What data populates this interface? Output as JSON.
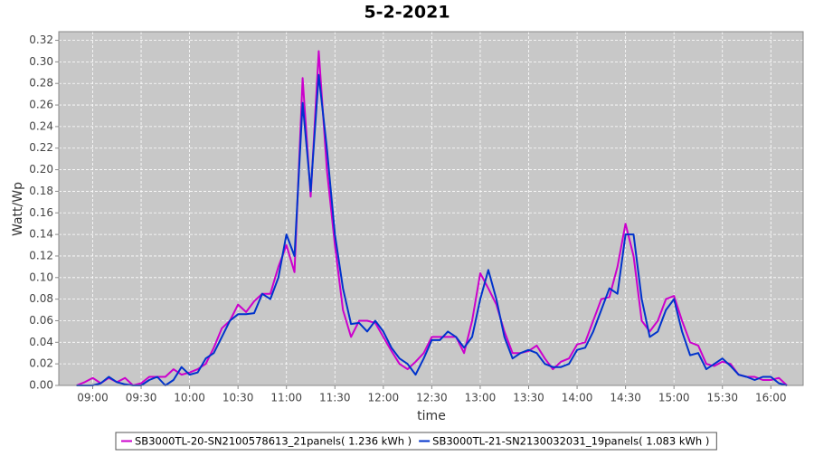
{
  "chart_data": {
    "type": "line",
    "title": "5-2-2021",
    "x_label": "time",
    "y_label": "Watt/Wp",
    "x": [
      "08:50",
      "08:55",
      "09:00",
      "09:05",
      "09:10",
      "09:15",
      "09:20",
      "09:25",
      "09:30",
      "09:35",
      "09:40",
      "09:45",
      "09:50",
      "09:55",
      "10:00",
      "10:05",
      "10:10",
      "10:15",
      "10:20",
      "10:25",
      "10:30",
      "10:35",
      "10:40",
      "10:45",
      "10:50",
      "10:55",
      "11:00",
      "11:05",
      "11:10",
      "11:15",
      "11:20",
      "11:25",
      "11:30",
      "11:35",
      "11:40",
      "11:45",
      "11:50",
      "11:55",
      "12:00",
      "12:05",
      "12:10",
      "12:15",
      "12:20",
      "12:25",
      "12:30",
      "12:35",
      "12:40",
      "12:45",
      "12:50",
      "12:55",
      "13:00",
      "13:05",
      "13:10",
      "13:15",
      "13:20",
      "13:25",
      "13:30",
      "13:35",
      "13:40",
      "13:45",
      "13:50",
      "13:55",
      "14:00",
      "14:05",
      "14:10",
      "14:15",
      "14:20",
      "14:25",
      "14:30",
      "14:35",
      "14:40",
      "14:45",
      "14:50",
      "14:55",
      "15:00",
      "15:05",
      "15:10",
      "15:15",
      "15:20",
      "15:25",
      "15:30",
      "15:35",
      "15:40",
      "15:45",
      "15:50",
      "15:55",
      "16:00",
      "16:05",
      "16:10"
    ],
    "series": [
      {
        "name": "SB3000TL-20-SN2100578613_21panels( 1.236 kWh )",
        "color": "#cc00cc",
        "values": [
          0.0,
          0.003,
          0.007,
          0.002,
          0.007,
          0.003,
          0.007,
          0.0,
          0.002,
          0.008,
          0.008,
          0.008,
          0.015,
          0.01,
          0.012,
          0.015,
          0.02,
          0.035,
          0.053,
          0.06,
          0.075,
          0.068,
          0.078,
          0.085,
          0.085,
          0.11,
          0.13,
          0.105,
          0.285,
          0.175,
          0.31,
          0.2,
          0.13,
          0.07,
          0.045,
          0.06,
          0.06,
          0.058,
          0.045,
          0.032,
          0.02,
          0.015,
          0.022,
          0.03,
          0.045,
          0.045,
          0.045,
          0.045,
          0.03,
          0.06,
          0.104,
          0.09,
          0.075,
          0.05,
          0.03,
          0.03,
          0.032,
          0.037,
          0.025,
          0.015,
          0.022,
          0.025,
          0.038,
          0.04,
          0.06,
          0.08,
          0.082,
          0.11,
          0.15,
          0.12,
          0.06,
          0.05,
          0.06,
          0.08,
          0.083,
          0.06,
          0.04,
          0.037,
          0.02,
          0.018,
          0.022,
          0.02,
          0.01,
          0.008,
          0.008,
          0.005,
          0.005,
          0.007,
          0.0
        ]
      },
      {
        "name": "SB3000TL-21-SN2130032031_19panels( 1.083 kWh )",
        "color": "#0033cc",
        "values": [
          0.0,
          0.0,
          0.0,
          0.002,
          0.008,
          0.003,
          0.001,
          0.0,
          0.0,
          0.005,
          0.008,
          0.0,
          0.005,
          0.017,
          0.01,
          0.012,
          0.025,
          0.03,
          0.045,
          0.06,
          0.066,
          0.066,
          0.067,
          0.085,
          0.08,
          0.1,
          0.14,
          0.12,
          0.262,
          0.18,
          0.288,
          0.22,
          0.14,
          0.09,
          0.057,
          0.058,
          0.05,
          0.06,
          0.05,
          0.035,
          0.025,
          0.02,
          0.01,
          0.025,
          0.042,
          0.042,
          0.05,
          0.045,
          0.035,
          0.045,
          0.08,
          0.107,
          0.08,
          0.045,
          0.025,
          0.03,
          0.033,
          0.03,
          0.02,
          0.017,
          0.017,
          0.02,
          0.033,
          0.035,
          0.05,
          0.07,
          0.09,
          0.085,
          0.14,
          0.14,
          0.08,
          0.045,
          0.05,
          0.07,
          0.08,
          0.05,
          0.028,
          0.03,
          0.015,
          0.02,
          0.025,
          0.018,
          0.01,
          0.008,
          0.005,
          0.008,
          0.008,
          0.002,
          0.0
        ]
      }
    ],
    "xlim": [
      "08:39",
      "16:20"
    ],
    "xticks": [
      "09:00",
      "09:30",
      "10:00",
      "10:30",
      "11:00",
      "11:30",
      "12:00",
      "12:30",
      "13:00",
      "13:30",
      "14:00",
      "14:30",
      "15:00",
      "15:30",
      "16:00"
    ],
    "ylim": [
      0,
      0.328
    ],
    "yticks": [
      {
        "value": 0,
        "label": "0.00"
      },
      0.02,
      0.04,
      0.06,
      0.08,
      {
        "value": 0.1,
        "label": "0.10"
      },
      0.12,
      0.14,
      0.16,
      0.18,
      {
        "value": 0.2,
        "label": "0.20"
      },
      0.22,
      0.24,
      0.26,
      0.28,
      {
        "value": 0.3,
        "label": "0.30"
      },
      0.32
    ],
    "grid": true,
    "legend": "bottom"
  }
}
